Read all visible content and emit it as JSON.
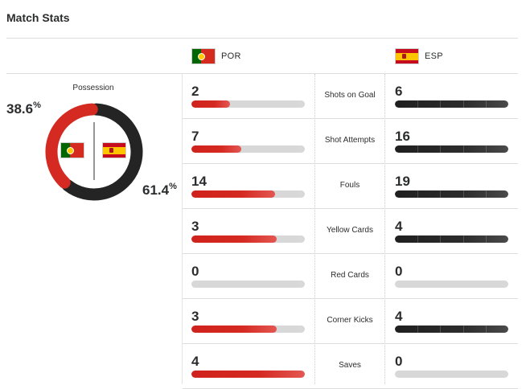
{
  "title": "Match Stats",
  "teams": {
    "home": {
      "abbr": "POR",
      "flag_icon": "portugal-flag-icon",
      "color": "#d42a22"
    },
    "away": {
      "abbr": "ESP",
      "flag_icon": "spain-flag-icon",
      "color": "#2b2b2b"
    }
  },
  "possession": {
    "label": "Possession",
    "home_value": "38.6",
    "away_value": "61.4",
    "unit": "%",
    "home_fraction": 0.386,
    "away_fraction": 0.614
  },
  "stats": [
    {
      "label": "Shots on Goal",
      "home": "2",
      "away": "6",
      "home_fill": 0.34,
      "away_fill": 1.0
    },
    {
      "label": "Shot Attempts",
      "home": "7",
      "away": "16",
      "home_fill": 0.44,
      "away_fill": 1.0
    },
    {
      "label": "Fouls",
      "home": "14",
      "away": "19",
      "home_fill": 0.74,
      "away_fill": 1.0
    },
    {
      "label": "Yellow Cards",
      "home": "3",
      "away": "4",
      "home_fill": 0.75,
      "away_fill": 1.0
    },
    {
      "label": "Red Cards",
      "home": "0",
      "away": "0",
      "home_fill": 0,
      "away_fill": 0
    },
    {
      "label": "Corner Kicks",
      "home": "3",
      "away": "4",
      "home_fill": 0.75,
      "away_fill": 1.0
    },
    {
      "label": "Saves",
      "home": "4",
      "away": "0",
      "home_fill": 1.0,
      "away_fill": 0
    }
  ]
}
